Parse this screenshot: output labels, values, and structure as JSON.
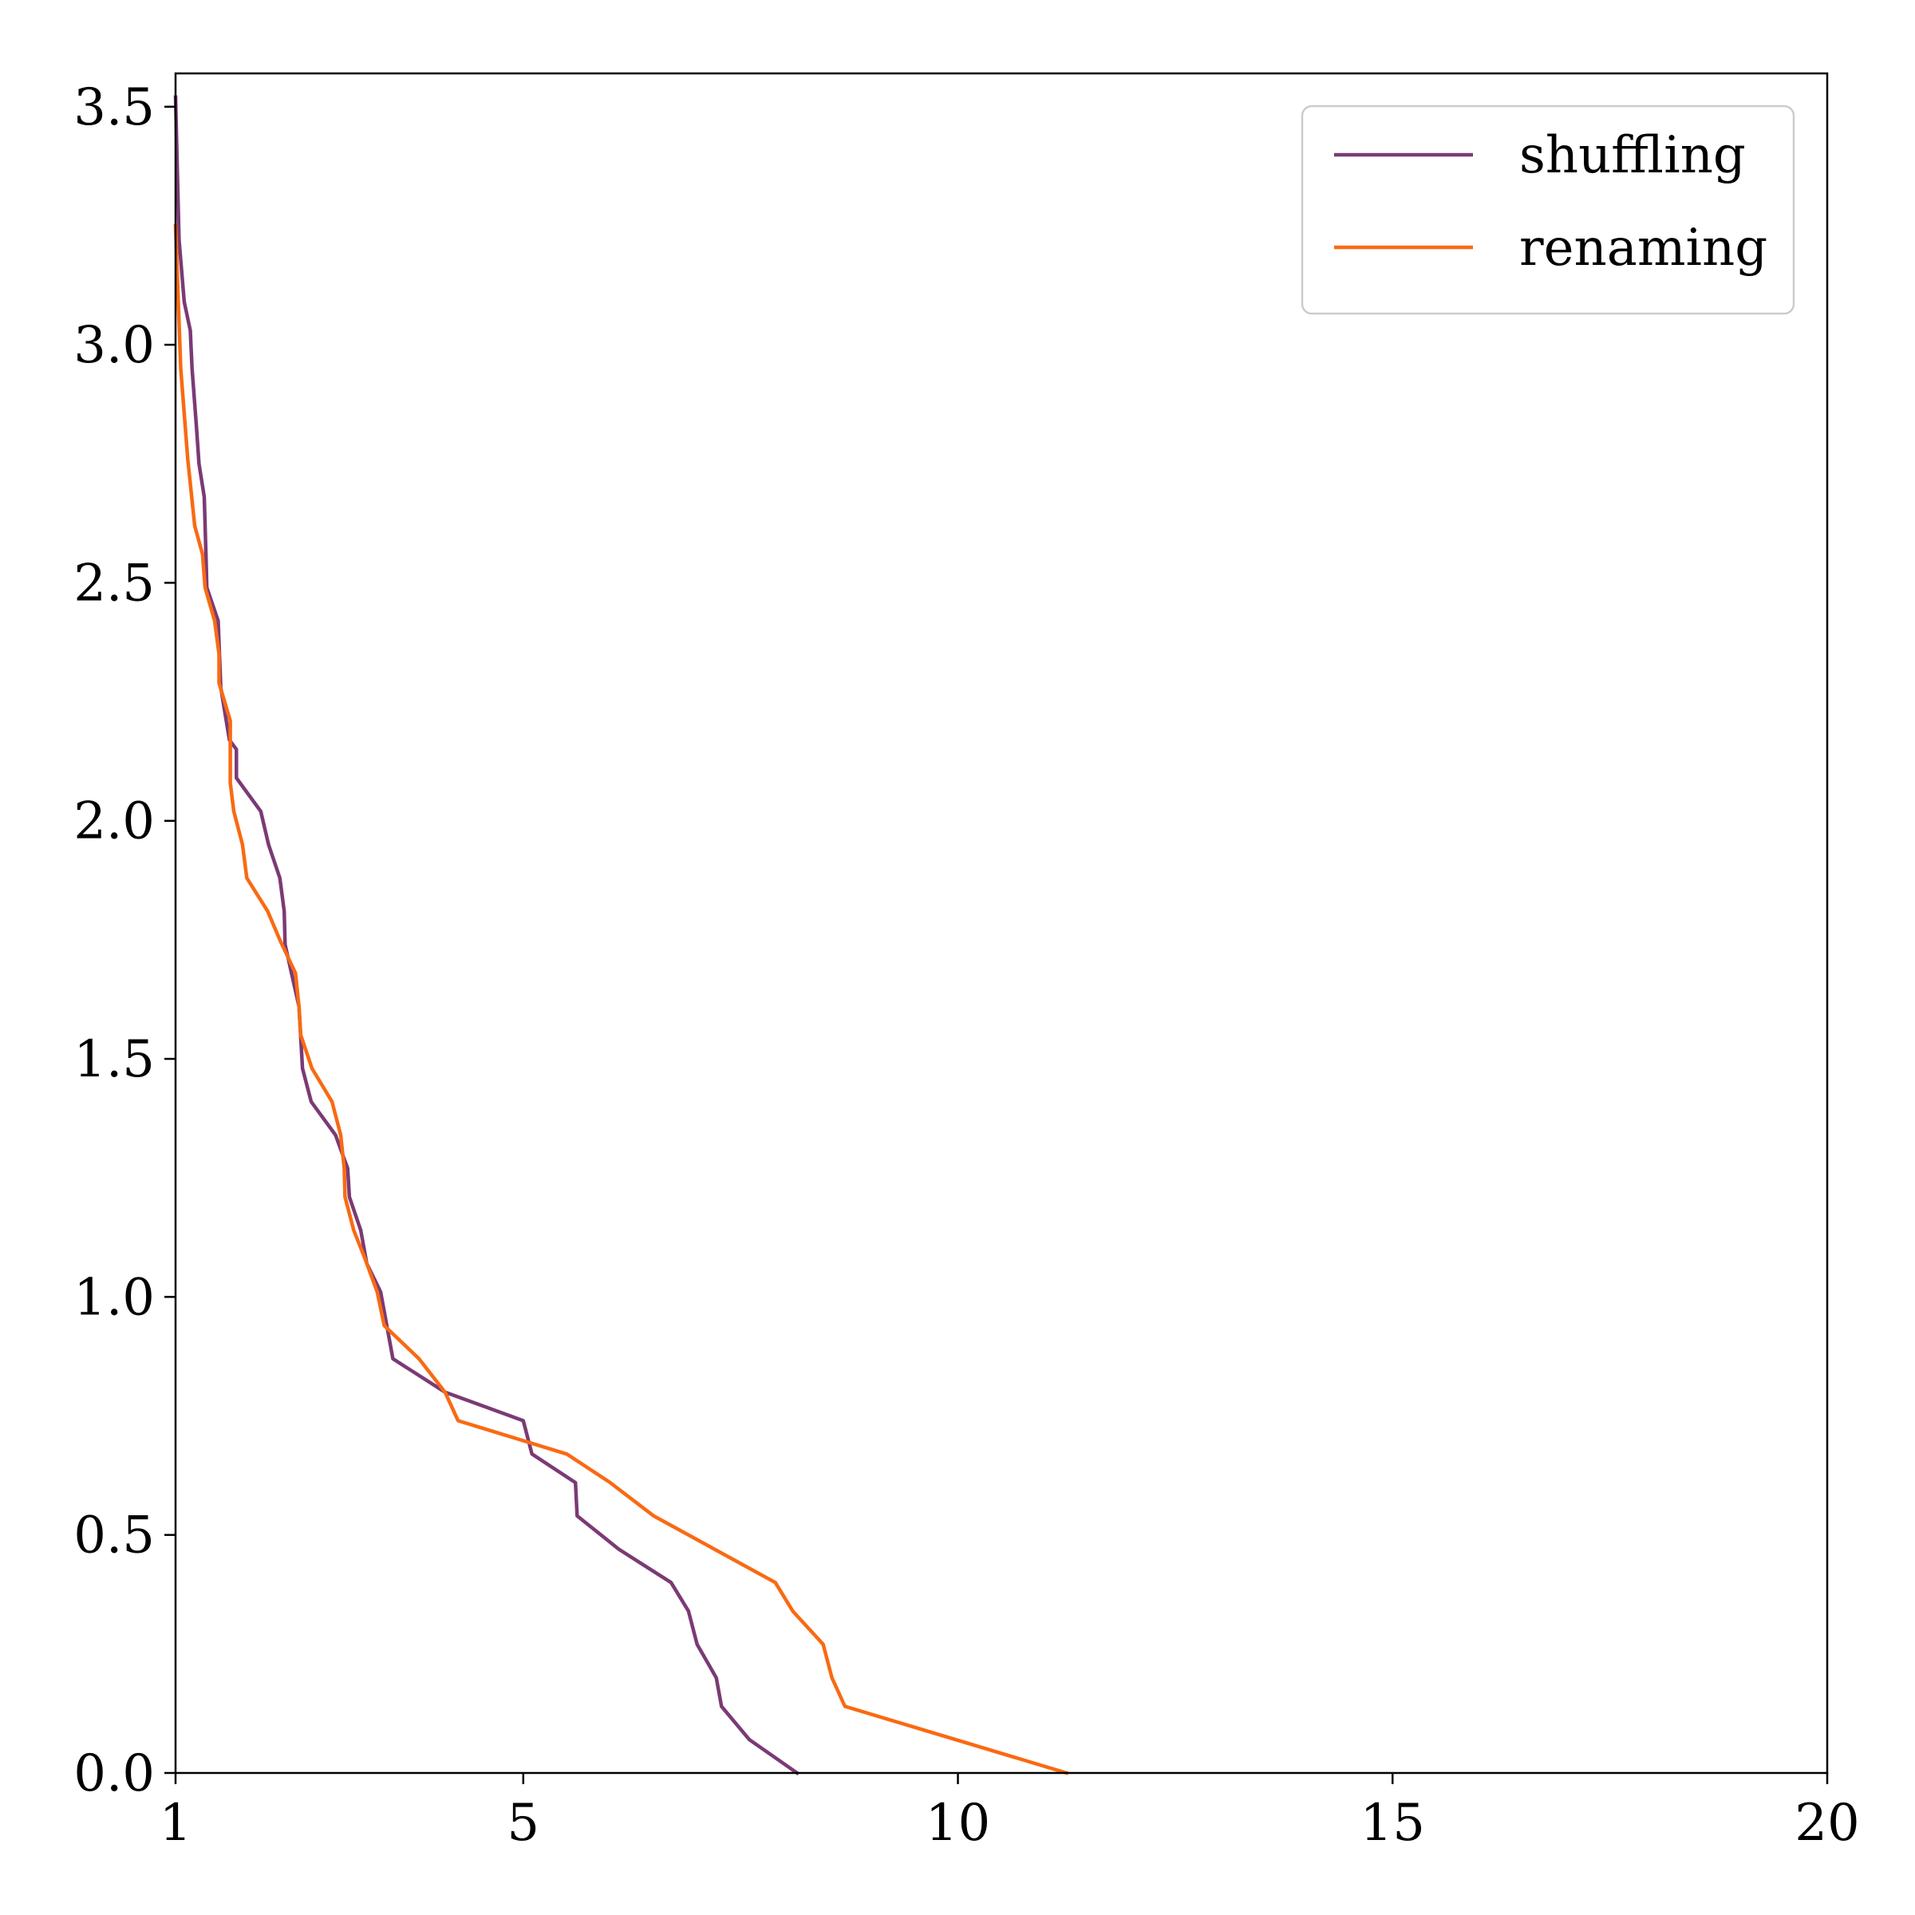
{
  "chart_data": {
    "type": "line",
    "title": "",
    "xlabel": "",
    "ylabel": "",
    "xlim": [
      1,
      20
    ],
    "ylim": [
      0,
      3.57
    ],
    "xticks": [
      "1",
      "5",
      "10",
      "15",
      "20"
    ],
    "yticks": [
      "0.0",
      "0.5",
      "1.0",
      "1.5",
      "2.0",
      "2.5",
      "3.0",
      "3.5"
    ],
    "grid": false,
    "legend_position": "top-right",
    "series": [
      {
        "name": "shuffling",
        "color": "#7b3a75",
        "points": [
          [
            1.0,
            3.52
          ],
          [
            1.04,
            3.22
          ],
          [
            1.1,
            3.09
          ],
          [
            1.17,
            3.03
          ],
          [
            1.19,
            2.95
          ],
          [
            1.24,
            2.83
          ],
          [
            1.27,
            2.75
          ],
          [
            1.33,
            2.68
          ],
          [
            1.35,
            2.56
          ],
          [
            1.36,
            2.49
          ],
          [
            1.49,
            2.42
          ],
          [
            1.52,
            2.28
          ],
          [
            1.62,
            2.17
          ],
          [
            1.7,
            2.15
          ],
          [
            1.7,
            2.09
          ],
          [
            1.98,
            2.02
          ],
          [
            2.07,
            1.95
          ],
          [
            2.2,
            1.88
          ],
          [
            2.25,
            1.81
          ],
          [
            2.26,
            1.74
          ],
          [
            2.42,
            1.61
          ],
          [
            2.46,
            1.48
          ],
          [
            2.56,
            1.41
          ],
          [
            2.84,
            1.34
          ],
          [
            2.98,
            1.27
          ],
          [
            3.0,
            1.21
          ],
          [
            3.13,
            1.14
          ],
          [
            3.2,
            1.07
          ],
          [
            3.36,
            1.01
          ],
          [
            3.5,
            0.87
          ],
          [
            4.1,
            0.8
          ],
          [
            5.0,
            0.74
          ],
          [
            5.1,
            0.67
          ],
          [
            5.6,
            0.61
          ],
          [
            5.62,
            0.54
          ],
          [
            6.1,
            0.47
          ],
          [
            6.7,
            0.4
          ],
          [
            6.9,
            0.34
          ],
          [
            7.0,
            0.27
          ],
          [
            7.22,
            0.2
          ],
          [
            7.28,
            0.14
          ],
          [
            7.6,
            0.07
          ],
          [
            8.15,
            0.0
          ]
        ]
      },
      {
        "name": "renaming",
        "color": "#f96a13",
        "points": [
          [
            1.0,
            3.25
          ],
          [
            1.06,
            2.95
          ],
          [
            1.14,
            2.76
          ],
          [
            1.22,
            2.62
          ],
          [
            1.31,
            2.56
          ],
          [
            1.34,
            2.49
          ],
          [
            1.45,
            2.42
          ],
          [
            1.5,
            2.35
          ],
          [
            1.5,
            2.29
          ],
          [
            1.63,
            2.21
          ],
          [
            1.63,
            2.08
          ],
          [
            1.67,
            2.02
          ],
          [
            1.77,
            1.95
          ],
          [
            1.82,
            1.88
          ],
          [
            2.06,
            1.81
          ],
          [
            2.2,
            1.75
          ],
          [
            2.38,
            1.68
          ],
          [
            2.42,
            1.61
          ],
          [
            2.44,
            1.55
          ],
          [
            2.57,
            1.48
          ],
          [
            2.8,
            1.41
          ],
          [
            2.9,
            1.34
          ],
          [
            2.94,
            1.27
          ],
          [
            2.95,
            1.21
          ],
          [
            3.05,
            1.14
          ],
          [
            3.18,
            1.08
          ],
          [
            3.32,
            1.01
          ],
          [
            3.4,
            0.94
          ],
          [
            3.8,
            0.87
          ],
          [
            4.1,
            0.8
          ],
          [
            4.25,
            0.74
          ],
          [
            5.5,
            0.67
          ],
          [
            6.0,
            0.61
          ],
          [
            6.5,
            0.54
          ],
          [
            7.2,
            0.47
          ],
          [
            7.9,
            0.4
          ],
          [
            8.1,
            0.34
          ],
          [
            8.45,
            0.27
          ],
          [
            8.55,
            0.2
          ],
          [
            8.7,
            0.14
          ],
          [
            11.25,
            0.0
          ]
        ]
      }
    ]
  }
}
